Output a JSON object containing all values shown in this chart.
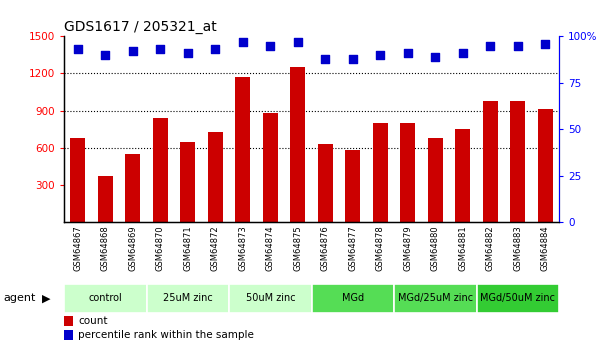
{
  "title": "GDS1617 / 205321_at",
  "samples": [
    "GSM64867",
    "GSM64868",
    "GSM64869",
    "GSM64870",
    "GSM64871",
    "GSM64872",
    "GSM64873",
    "GSM64874",
    "GSM64875",
    "GSM64876",
    "GSM64877",
    "GSM64878",
    "GSM64879",
    "GSM64880",
    "GSM64881",
    "GSM64882",
    "GSM64883",
    "GSM64884"
  ],
  "counts": [
    680,
    370,
    550,
    840,
    650,
    730,
    1170,
    880,
    1250,
    630,
    580,
    800,
    800,
    680,
    750,
    980,
    980,
    910
  ],
  "percentiles": [
    93,
    90,
    92,
    93,
    91,
    93,
    97,
    95,
    97,
    88,
    88,
    90,
    91,
    89,
    91,
    95,
    95,
    96
  ],
  "bar_color": "#cc0000",
  "dot_color": "#0000cc",
  "ylim_left": [
    0,
    1500
  ],
  "ylim_right": [
    0,
    100
  ],
  "yticks_left": [
    300,
    600,
    900,
    1200,
    1500
  ],
  "yticks_right": [
    0,
    25,
    50,
    75,
    100
  ],
  "grid_values": [
    600,
    900,
    1200
  ],
  "groups": [
    {
      "label": "control",
      "start": 0,
      "end": 3,
      "color": "#ccffcc"
    },
    {
      "label": "25uM zinc",
      "start": 3,
      "end": 6,
      "color": "#ccffcc"
    },
    {
      "label": "50uM zinc",
      "start": 6,
      "end": 9,
      "color": "#ccffcc"
    },
    {
      "label": "MGd",
      "start": 9,
      "end": 12,
      "color": "#55dd55"
    },
    {
      "label": "MGd/25uM zinc",
      "start": 12,
      "end": 15,
      "color": "#55dd55"
    },
    {
      "label": "MGd/50uM zinc",
      "start": 15,
      "end": 18,
      "color": "#33cc33"
    }
  ],
  "legend_count_label": "count",
  "legend_pct_label": "percentile rank within the sample",
  "agent_label": "agent",
  "dot_size": 40,
  "bar_width": 0.55,
  "plot_bg_color": "#ffffff",
  "tick_label_bg": "#d0d0d0"
}
